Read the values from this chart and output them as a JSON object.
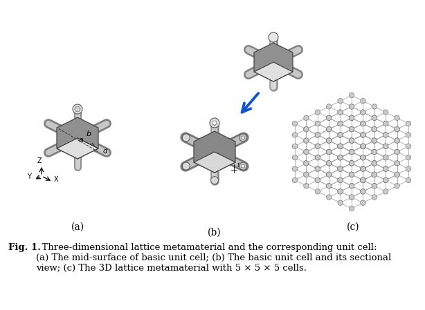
{
  "caption_bold": "Fig. 1.",
  "caption_text": "  Three-dimensional lattice metamaterial and the corresponding unit cell:\n(a) The mid-surface of basic unit cell; (b) The basic unit cell and its sectional\nview; (c) The 3D lattice metamaterial with 5 × 5 × 5 cells.",
  "sub_labels": [
    "(a)",
    "(b)",
    "(c)"
  ],
  "background_color": "#ffffff",
  "text_color": "#000000",
  "caption_fontsize": 9.5,
  "label_fontsize": 10,
  "fig_width": 6.14,
  "fig_height": 4.49,
  "dpi": 100
}
